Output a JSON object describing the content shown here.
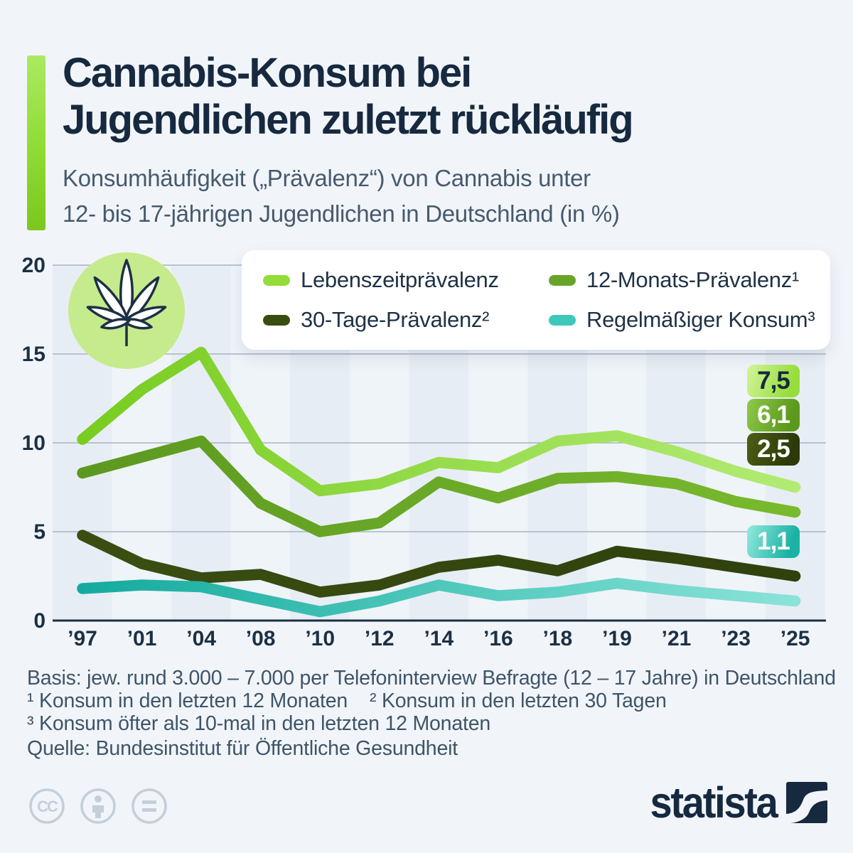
{
  "header": {
    "title_lines": [
      "Cannabis-Konsum bei",
      "Jugendlichen zuletzt rückläufig"
    ],
    "subtitle_lines": [
      "Konsumhäufigkeit („Prävalenz“) von Cannabis unter",
      "12- bis 17-jährigen Jugendlichen in Deutschland (in %)"
    ]
  },
  "legend": {
    "items": [
      {
        "label": "Lebenszeitprävalenz",
        "color": "#94DC37"
      },
      {
        "label": "12-Monats-Prävalenz¹",
        "color": "#68A428"
      },
      {
        "label": "30-Tage-Prävalenz²",
        "color": "#3A4C10"
      },
      {
        "label": "Regelmäßiger Konsum³",
        "color": "#3EC8BC"
      }
    ]
  },
  "chart_data": {
    "type": "line",
    "title": "Cannabis-Konsum bei Jugendlichen zuletzt rückläufig",
    "xlabel": "",
    "ylabel": "Prävalenz in %",
    "x_labels": [
      "’97",
      "’01",
      "’04",
      "’08",
      "’10",
      "’12",
      "’14",
      "’16",
      "’18",
      "’19",
      "’21",
      "’23",
      "’25"
    ],
    "ylim": [
      0,
      20
    ],
    "yticks": [
      0,
      5,
      10,
      15,
      20
    ],
    "grid": true,
    "legend_position": "top",
    "series": [
      {
        "name": "Lebenszeitprävalenz",
        "values": [
          10.2,
          13.0,
          15.1,
          9.6,
          7.3,
          7.7,
          8.9,
          8.6,
          10.1,
          10.4,
          9.5,
          8.4,
          7.5
        ],
        "stroke_start": "#76CB1D",
        "stroke_end": "#B5EC78"
      },
      {
        "name": "12-Monats-Prävalenz",
        "values": [
          8.3,
          9.2,
          10.1,
          6.6,
          5.0,
          5.5,
          7.8,
          6.9,
          8.0,
          8.1,
          7.7,
          6.7,
          6.1
        ],
        "stroke_start": "#5B9720",
        "stroke_end": "#7ABB2E"
      },
      {
        "name": "30-Tage-Prävalenz",
        "values": [
          4.8,
          3.2,
          2.4,
          2.6,
          1.6,
          2.0,
          3.0,
          3.4,
          2.8,
          3.9,
          3.5,
          3.0,
          2.5
        ],
        "stroke_start": "#3B4F12",
        "stroke_end": "#2F400D"
      },
      {
        "name": "Regelmäßiger Konsum",
        "values": [
          1.8,
          2.0,
          1.9,
          1.2,
          0.5,
          1.1,
          2.0,
          1.4,
          1.6,
          2.1,
          1.7,
          1.4,
          1.1
        ],
        "stroke_start": "#0FA99C",
        "stroke_end": "#8FE5DA"
      }
    ]
  },
  "value_labels": [
    {
      "text": "7,5",
      "series": "Lebenszeitprävalenz"
    },
    {
      "text": "6,1",
      "series": "12-Monats-Prävalenz"
    },
    {
      "text": "2,5",
      "series": "30-Tage-Prävalenz"
    },
    {
      "text": "1,1",
      "series": "Regelmäßiger Konsum"
    }
  ],
  "footer": {
    "basis": "Basis: jew. rund 3.000 – 7.000 per Telefoninterview Befragte (12 – 17 Jahre) in Deutschland",
    "footnote_1_2": "¹ Konsum in den letzten 12 Monaten    ² Konsum in den letzten 30 Tagen",
    "footnote_3": "³ Konsum öfter als 10-mal in den letzten 12 Monaten",
    "source": "Quelle: Bundesinstitut für Öffentliche Gesundheit"
  },
  "branding": {
    "wordmark": "statista"
  },
  "license_icons": [
    "cc-icon",
    "attribution-person-icon",
    "equals-icon"
  ],
  "colors": {
    "background": "#F1F5FA",
    "stripe_dark": "#E7EDF4",
    "stripe_light": "#EFF4F9",
    "gridline": "#A9B3C1",
    "axis": "#1C3044",
    "title_text": "#17293F",
    "subtitle_text": "#47596D",
    "footer_text": "#3E5468",
    "leaf_circle": "#C5EB8C",
    "license_gray": "#C5CFDA"
  }
}
